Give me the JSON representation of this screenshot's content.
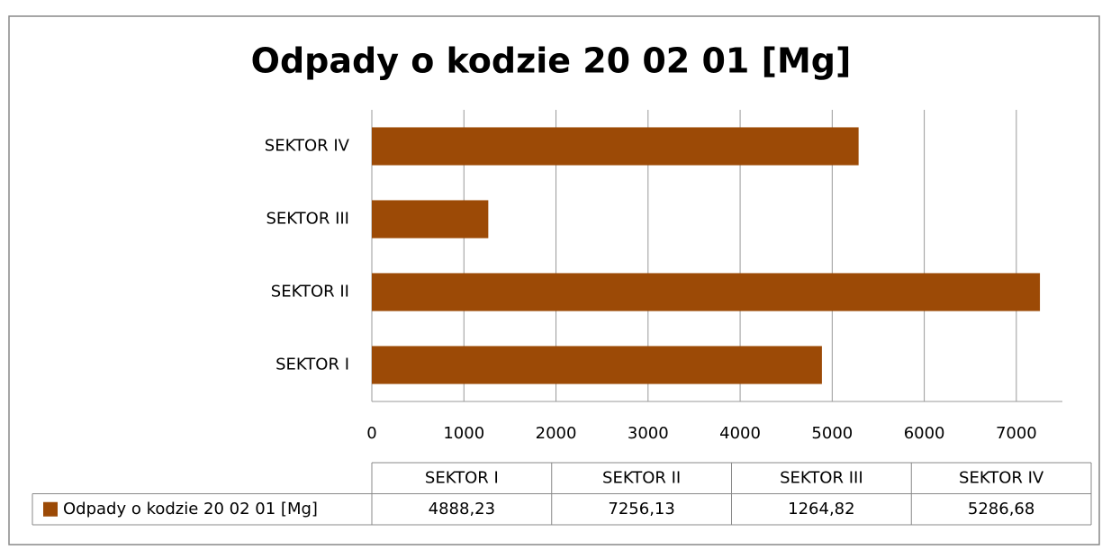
{
  "chart_data": {
    "type": "bar",
    "orientation": "horizontal",
    "title": "Odpady o kodzie 20 02 01 [Mg]",
    "categories": [
      "SEKTOR I",
      "SEKTOR II",
      "SEKTOR III",
      "SEKTOR IV"
    ],
    "series": [
      {
        "name": "Odpady o kodzie 20 02 01 [Mg]",
        "color": "#9c4a06",
        "values": [
          4888.23,
          7256.13,
          1264.82,
          5286.68
        ],
        "value_labels": [
          "4888,23",
          "7256,13",
          "1264,82",
          "5286,68"
        ]
      }
    ],
    "xlim": [
      0,
      7500
    ],
    "xticks": [
      0,
      1000,
      2000,
      3000,
      4000,
      5000,
      6000,
      7000
    ],
    "grid": true,
    "data_table": true
  }
}
